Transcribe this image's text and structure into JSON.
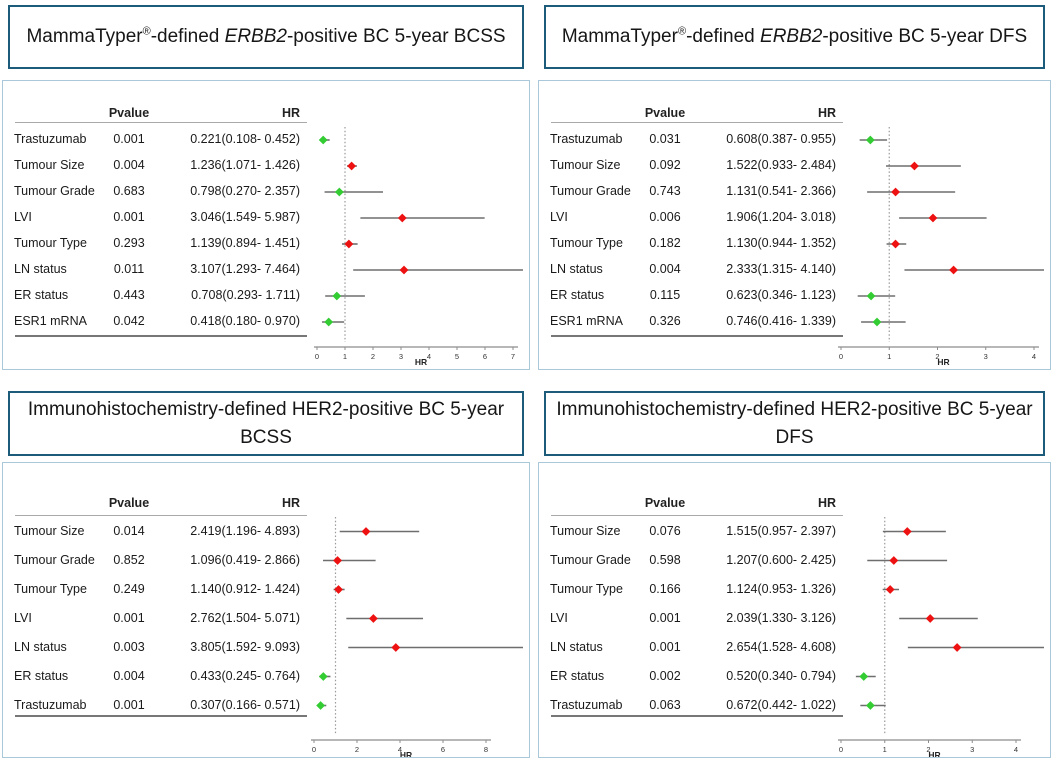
{
  "colors": {
    "marker_above_1": "#ee1111",
    "marker_below_1": "#33cc33",
    "whisker": "#6e6e6e",
    "ref_line": "#9a9a9a",
    "axis": "#8c8c8c",
    "title_border": "#1d5b7a",
    "panel_border": "#aac8da"
  },
  "chart_data": [
    {
      "type": "scatter",
      "variant": "forest-plot",
      "title": "MammaTyper®-defined ERBB2-positive BC 5-year BCSS",
      "title_parts": {
        "p1": "MammaTyper",
        "reg": "®",
        "p2": "-defined ",
        "italic": "ERBB2",
        "p3": "-positive BC 5-year BCSS"
      },
      "table_headers": {
        "pvalue": "Pvalue",
        "hr": "HR"
      },
      "axis": {
        "label": "HR",
        "min": 0,
        "max": 7,
        "ticks": [
          0,
          1,
          2,
          3,
          4,
          5,
          6,
          7
        ]
      },
      "ref_line": 1,
      "rows": [
        {
          "label": "Trastuzumab",
          "pvalue": "0.001",
          "hr_text": "0.221(0.108- 0.452)",
          "hr": 0.221,
          "ci_low": 0.108,
          "ci_high": 0.452,
          "color": "green"
        },
        {
          "label": "Tumour Size",
          "pvalue": "0.004",
          "hr_text": "1.236(1.071- 1.426)",
          "hr": 1.236,
          "ci_low": 1.071,
          "ci_high": 1.426,
          "color": "red"
        },
        {
          "label": "Tumour Grade",
          "pvalue": "0.683",
          "hr_text": "0.798(0.270- 2.357)",
          "hr": 0.798,
          "ci_low": 0.27,
          "ci_high": 2.357,
          "color": "green"
        },
        {
          "label": "LVI",
          "pvalue": "0.001",
          "hr_text": "3.046(1.549- 5.987)",
          "hr": 3.046,
          "ci_low": 1.549,
          "ci_high": 5.987,
          "color": "red"
        },
        {
          "label": "Tumour Type",
          "pvalue": "0.293",
          "hr_text": "1.139(0.894- 1.451)",
          "hr": 1.139,
          "ci_low": 0.894,
          "ci_high": 1.451,
          "color": "red"
        },
        {
          "label": "LN status",
          "pvalue": "0.011",
          "hr_text": "3.107(1.293- 7.464)",
          "hr": 3.107,
          "ci_low": 1.293,
          "ci_high": 7.464,
          "color": "red"
        },
        {
          "label": "ER status",
          "pvalue": "0.443",
          "hr_text": "0.708(0.293- 1.711)",
          "hr": 0.708,
          "ci_low": 0.293,
          "ci_high": 1.711,
          "color": "green"
        },
        {
          "label": "ESR1 mRNA",
          "pvalue": "0.042",
          "hr_text": "0.418(0.180- 0.970)",
          "hr": 0.418,
          "ci_low": 0.18,
          "ci_high": 0.97,
          "color": "green"
        }
      ]
    },
    {
      "type": "scatter",
      "variant": "forest-plot",
      "title": "MammaTyper®-defined ERBB2-positive BC 5-year DFS",
      "title_parts": {
        "p1": "MammaTyper",
        "reg": "®",
        "p2": "-defined ",
        "italic": "ERBB2",
        "p3": "-positive BC 5-year DFS"
      },
      "table_headers": {
        "pvalue": "Pvalue",
        "hr": "HR"
      },
      "axis": {
        "label": "HR",
        "min": 0,
        "max": 4,
        "ticks": [
          0,
          1,
          2,
          3,
          4
        ]
      },
      "ref_line": 1,
      "rows": [
        {
          "label": "Trastuzumab",
          "pvalue": "0.031",
          "hr_text": "0.608(0.387- 0.955)",
          "hr": 0.608,
          "ci_low": 0.387,
          "ci_high": 0.955,
          "color": "green"
        },
        {
          "label": "Tumour Size",
          "pvalue": "0.092",
          "hr_text": "1.522(0.933- 2.484)",
          "hr": 1.522,
          "ci_low": 0.933,
          "ci_high": 2.484,
          "color": "red"
        },
        {
          "label": "Tumour Grade",
          "pvalue": "0.743",
          "hr_text": "1.131(0.541- 2.366)",
          "hr": 1.131,
          "ci_low": 0.541,
          "ci_high": 2.366,
          "color": "red"
        },
        {
          "label": "LVI",
          "pvalue": "0.006",
          "hr_text": "1.906(1.204- 3.018)",
          "hr": 1.906,
          "ci_low": 1.204,
          "ci_high": 3.018,
          "color": "red"
        },
        {
          "label": "Tumour Type",
          "pvalue": "0.182",
          "hr_text": "1.130(0.944- 1.352)",
          "hr": 1.13,
          "ci_low": 0.944,
          "ci_high": 1.352,
          "color": "red"
        },
        {
          "label": "LN status",
          "pvalue": "0.004",
          "hr_text": "2.333(1.315- 4.140)",
          "hr": 2.333,
          "ci_low": 1.315,
          "ci_high": 4.14,
          "color": "red"
        },
        {
          "label": "ER status",
          "pvalue": "0.115",
          "hr_text": "0.623(0.346- 1.123)",
          "hr": 0.623,
          "ci_low": 0.346,
          "ci_high": 1.123,
          "color": "green"
        },
        {
          "label": "ESR1 mRNA",
          "pvalue": "0.326",
          "hr_text": "0.746(0.416- 1.339)",
          "hr": 0.746,
          "ci_low": 0.416,
          "ci_high": 1.339,
          "color": "green"
        }
      ]
    },
    {
      "type": "scatter",
      "variant": "forest-plot",
      "title": "Immunohistochemistry-defined HER2-positive BC 5-year BCSS",
      "title_parts": {
        "p1": "Immunohistochemistry-defined HER2-positive BC 5-year BCSS",
        "reg": "",
        "p2": "",
        "italic": "",
        "p3": ""
      },
      "table_headers": {
        "pvalue": "Pvalue",
        "hr": "HR"
      },
      "axis": {
        "label": "HR",
        "min": 0,
        "max": 8,
        "ticks": [
          0,
          2,
          4,
          6,
          8
        ]
      },
      "ref_line": 1,
      "rows": [
        {
          "label": "Tumour Size",
          "pvalue": "0.014",
          "hr_text": "2.419(1.196- 4.893)",
          "hr": 2.419,
          "ci_low": 1.196,
          "ci_high": 4.893,
          "color": "red"
        },
        {
          "label": "Tumour Grade",
          "pvalue": "0.852",
          "hr_text": "1.096(0.419- 2.866)",
          "hr": 1.096,
          "ci_low": 0.419,
          "ci_high": 2.866,
          "color": "red"
        },
        {
          "label": "Tumour Type",
          "pvalue": "0.249",
          "hr_text": "1.140(0.912- 1.424)",
          "hr": 1.14,
          "ci_low": 0.912,
          "ci_high": 1.424,
          "color": "red"
        },
        {
          "label": "LVI",
          "pvalue": "0.001",
          "hr_text": "2.762(1.504- 5.071)",
          "hr": 2.762,
          "ci_low": 1.504,
          "ci_high": 5.071,
          "color": "red"
        },
        {
          "label": "LN status",
          "pvalue": "0.003",
          "hr_text": "3.805(1.592- 9.093)",
          "hr": 3.805,
          "ci_low": 1.592,
          "ci_high": 9.093,
          "color": "red"
        },
        {
          "label": "ER status",
          "pvalue": "0.004",
          "hr_text": "0.433(0.245- 0.764)",
          "hr": 0.433,
          "ci_low": 0.245,
          "ci_high": 0.764,
          "color": "green"
        },
        {
          "label": "Trastuzumab",
          "pvalue": "0.001",
          "hr_text": "0.307(0.166- 0.571)",
          "hr": 0.307,
          "ci_low": 0.166,
          "ci_high": 0.571,
          "color": "green"
        }
      ]
    },
    {
      "type": "scatter",
      "variant": "forest-plot",
      "title": "Immunohistochemistry-defined HER2-positive BC 5-year DFS",
      "title_parts": {
        "p1": "Immunohistochemistry-defined HER2-positive BC 5-year DFS",
        "reg": "",
        "p2": "",
        "italic": "",
        "p3": ""
      },
      "table_headers": {
        "pvalue": "Pvalue",
        "hr": "HR"
      },
      "axis": {
        "label": "HR",
        "min": 0,
        "max": 4,
        "ticks": [
          0,
          1,
          2,
          3,
          4
        ]
      },
      "ref_line": 1,
      "rows": [
        {
          "label": "Tumour Size",
          "pvalue": "0.076",
          "hr_text": "1.515(0.957- 2.397)",
          "hr": 1.515,
          "ci_low": 0.957,
          "ci_high": 2.397,
          "color": "red"
        },
        {
          "label": "Tumour Grade",
          "pvalue": "0.598",
          "hr_text": "1.207(0.600- 2.425)",
          "hr": 1.207,
          "ci_low": 0.6,
          "ci_high": 2.425,
          "color": "red"
        },
        {
          "label": "Tumour Type",
          "pvalue": "0.166",
          "hr_text": "1.124(0.953- 1.326)",
          "hr": 1.124,
          "ci_low": 0.953,
          "ci_high": 1.326,
          "color": "red"
        },
        {
          "label": "LVI",
          "pvalue": "0.001",
          "hr_text": "2.039(1.330- 3.126)",
          "hr": 2.039,
          "ci_low": 1.33,
          "ci_high": 3.126,
          "color": "red"
        },
        {
          "label": "LN status",
          "pvalue": "0.001",
          "hr_text": "2.654(1.528- 4.608)",
          "hr": 2.654,
          "ci_low": 1.528,
          "ci_high": 4.608,
          "color": "red"
        },
        {
          "label": "ER status",
          "pvalue": "0.002",
          "hr_text": "0.520(0.340- 0.794)",
          "hr": 0.52,
          "ci_low": 0.34,
          "ci_high": 0.794,
          "color": "green"
        },
        {
          "label": "Trastuzumab",
          "pvalue": "0.063",
          "hr_text": "0.672(0.442- 1.022)",
          "hr": 0.672,
          "ci_low": 0.442,
          "ci_high": 1.022,
          "color": "green"
        }
      ]
    }
  ]
}
